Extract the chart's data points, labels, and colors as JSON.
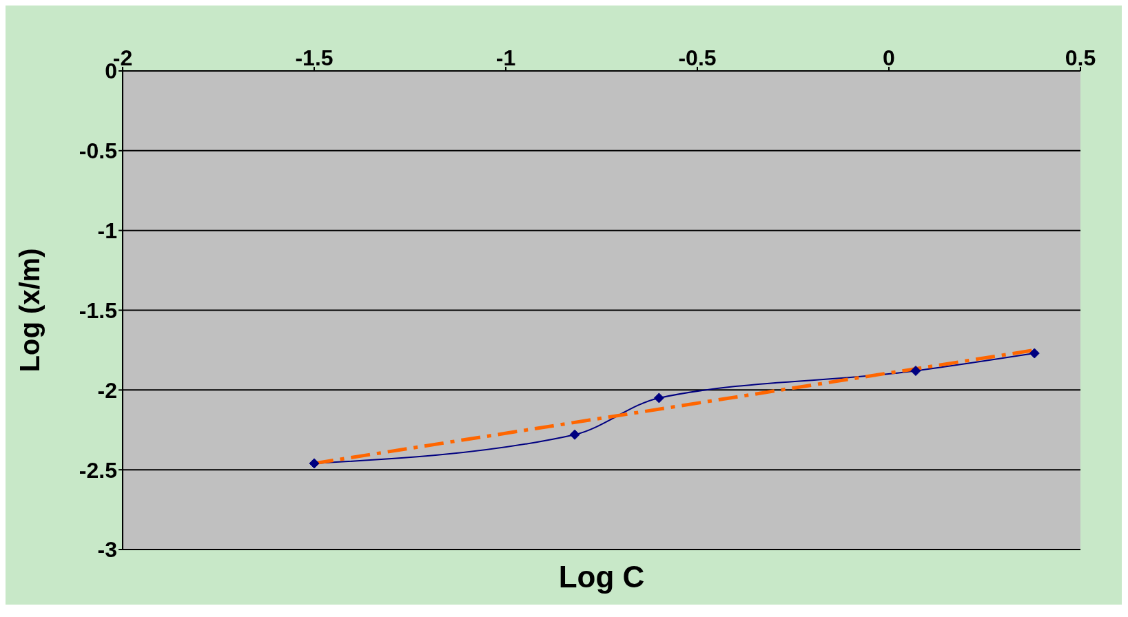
{
  "chart_data": {
    "type": "line",
    "xlabel": "Log C",
    "ylabel": "Log (x/m)",
    "xlim": [
      -2,
      0.5
    ],
    "xticks": [
      -2,
      -1.5,
      -1,
      -0.5,
      0,
      0.5
    ],
    "ylim": [
      -3,
      0
    ],
    "yticks": [
      0,
      -0.5,
      -1,
      -1.5,
      -2,
      -2.5,
      -3
    ],
    "grid": "y",
    "legend": false,
    "series": [
      {
        "color": "#000080",
        "x": [
          -1.5,
          -0.82,
          -0.6,
          0.07,
          0.38
        ],
        "values": [
          -2.46,
          -2.28,
          -2.05,
          -1.88,
          -1.77
        ],
        "marker": "diamond",
        "line_style": "solid"
      },
      {
        "color": "#ff6600",
        "x": [
          -1.5,
          0.38
        ],
        "values": [
          -2.46,
          -1.75
        ],
        "marker": "none",
        "line_style": "dashed"
      }
    ]
  }
}
